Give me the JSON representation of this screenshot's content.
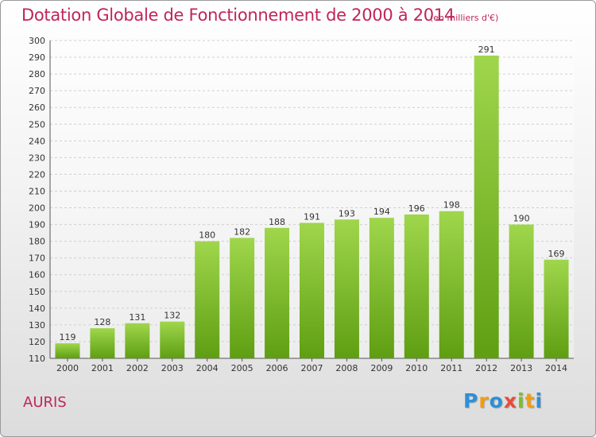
{
  "chart_data": {
    "type": "bar",
    "title": "Dotation Globale de Fonctionnement de 2000 à 2014",
    "subtitle": "(en milliers d'€)",
    "categories": [
      "2000",
      "2001",
      "2002",
      "2003",
      "2004",
      "2005",
      "2006",
      "2007",
      "2008",
      "2009",
      "2010",
      "2011",
      "2012",
      "2013",
      "2014"
    ],
    "values": [
      119,
      128,
      131,
      132,
      180,
      182,
      188,
      191,
      193,
      194,
      196,
      198,
      291,
      190,
      169
    ],
    "ylim": [
      110,
      300
    ],
    "yticks": [
      110,
      120,
      130,
      140,
      150,
      160,
      170,
      180,
      190,
      200,
      210,
      220,
      230,
      240,
      250,
      260,
      270,
      280,
      290,
      300
    ],
    "grid": true,
    "bar_color": "#7cbd2a"
  },
  "commune": "AURIS",
  "brand": {
    "letters": [
      "P",
      "r",
      "o",
      "x",
      "i",
      "t",
      "i"
    ],
    "colors": [
      "#2d8fd8",
      "#f39c12",
      "#2d8fd8",
      "#e74c3c",
      "#7cbd2a",
      "#f39c12",
      "#2d8fd8"
    ]
  }
}
